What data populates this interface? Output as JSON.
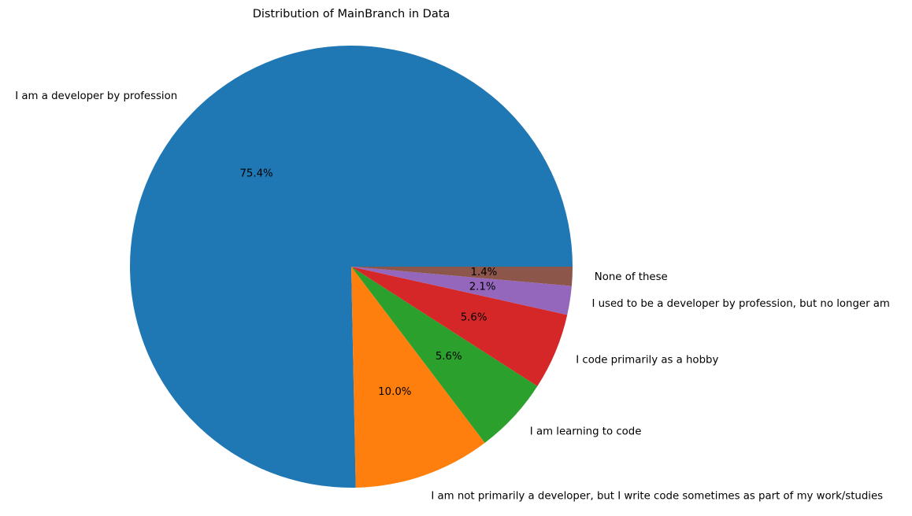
{
  "chart_data": {
    "type": "pie",
    "title": "Distribution of MainBranch in Data",
    "start_angle_deg": 0,
    "direction": "counterclockwise",
    "slices": [
      {
        "label": "I am a developer by profession",
        "value": 75.4,
        "pct_label": "75.4%",
        "color": "#1f77b4"
      },
      {
        "label": "I am not primarily a developer, but I write code sometimes as part of my work/studies",
        "value": 10.0,
        "pct_label": "10.0%",
        "color": "#ff7f0e"
      },
      {
        "label": "I am learning to code",
        "value": 5.6,
        "pct_label": "5.6%",
        "color": "#2ca02c"
      },
      {
        "label": "I code primarily as a hobby",
        "value": 5.6,
        "pct_label": "5.6%",
        "color": "#d62728"
      },
      {
        "label": "I used to be a developer by profession, but no longer am",
        "value": 2.1,
        "pct_label": "2.1%",
        "color": "#9467bd"
      },
      {
        "label": "None of these",
        "value": 1.4,
        "pct_label": "1.4%",
        "color": "#8c564b"
      }
    ]
  }
}
